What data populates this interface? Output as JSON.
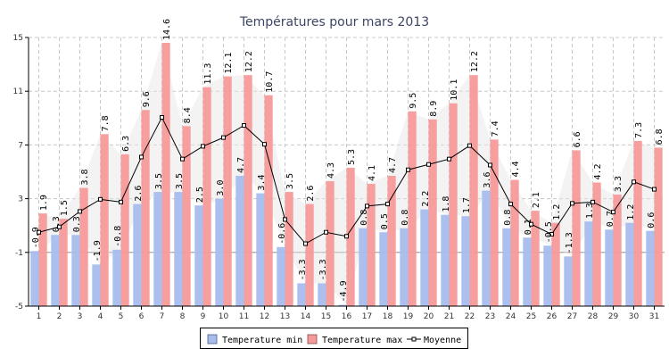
{
  "chart_data": {
    "type": "bar",
    "title": "Températures pour mars 2013",
    "categories": [
      "1",
      "2",
      "3",
      "4",
      "5",
      "6",
      "7",
      "8",
      "9",
      "10",
      "11",
      "12",
      "13",
      "14",
      "15",
      "16",
      "17",
      "18",
      "19",
      "20",
      "21",
      "22",
      "23",
      "24",
      "25",
      "26",
      "27",
      "28",
      "29",
      "30",
      "31"
    ],
    "series": [
      {
        "name": "Temperature min",
        "type": "bar",
        "color": "#a8bdee",
        "values": [
          -0.9,
          0.3,
          0.3,
          -1.9,
          -0.8,
          2.6,
          3.5,
          3.5,
          2.5,
          3.0,
          4.7,
          3.4,
          -0.6,
          -3.3,
          -3.3,
          -4.9,
          0.8,
          0.5,
          0.8,
          2.2,
          1.8,
          1.7,
          3.6,
          0.8,
          0.1,
          -0.5,
          -1.3,
          1.3,
          0.7,
          1.2,
          0.6
        ]
      },
      {
        "name": "Temperature max",
        "type": "bar",
        "color": "#f79999",
        "values": [
          1.9,
          1.5,
          3.8,
          7.8,
          6.3,
          9.6,
          14.6,
          8.4,
          11.3,
          12.1,
          12.2,
          10.7,
          3.5,
          2.6,
          4.3,
          5.3,
          4.1,
          4.7,
          9.5,
          8.9,
          10.1,
          12.2,
          7.4,
          4.4,
          2.1,
          1.2,
          6.6,
          4.2,
          3.3,
          7.3,
          6.8
        ]
      },
      {
        "name": "Moyenne",
        "type": "line",
        "color": "#000000",
        "values": [
          0.5,
          0.9,
          2.05,
          2.95,
          2.75,
          6.1,
          9.05,
          5.95,
          6.9,
          7.55,
          8.45,
          7.05,
          1.45,
          -0.35,
          0.5,
          0.2,
          2.45,
          2.6,
          5.15,
          5.55,
          5.95,
          6.95,
          5.5,
          2.6,
          1.1,
          0.35,
          2.65,
          2.75,
          2.0,
          4.25,
          3.7
        ]
      }
    ],
    "ylim": [
      -5,
      15
    ],
    "yticks": [
      "15",
      "11",
      "7",
      "3",
      "-1",
      "-5"
    ],
    "grid": true,
    "legend_position": "bottom-center"
  }
}
